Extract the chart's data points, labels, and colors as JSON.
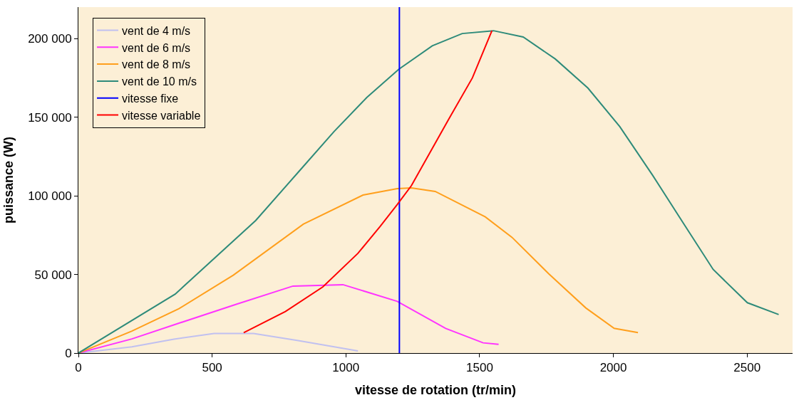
{
  "chart_data": {
    "type": "line",
    "xlabel": "vitesse de rotation (tr/min)",
    "ylabel": "puissance (W)",
    "xlim": [
      0,
      2670
    ],
    "ylim": [
      0,
      220000
    ],
    "xticks": [
      0,
      500,
      1000,
      1500,
      2000,
      2500
    ],
    "yticks": [
      0,
      {
        "value": 50000,
        "label": "50 000"
      },
      {
        "value": 100000,
        "label": "100 000"
      },
      {
        "value": 150000,
        "label": "150 000"
      },
      {
        "value": 200000,
        "label": "200 000"
      }
    ],
    "grid": false,
    "legend": "top left",
    "marker": "none",
    "line_style": "solid",
    "series": [
      {
        "name": "vent de 4 m/s",
        "color": "#c0c0f0",
        "x": [
          0,
          200,
          357,
          507,
          655,
          822,
          1045
        ],
        "values": [
          0,
          4000,
          8800,
          12500,
          12500,
          7900,
          1400
        ]
      },
      {
        "name": "vent de 6 m/s",
        "color": "#ff33ff",
        "x": [
          0,
          200,
          376,
          590,
          802,
          989,
          1192,
          1373,
          1513,
          1571
        ],
        "values": [
          0,
          9000,
          19000,
          31000,
          42600,
          43500,
          32900,
          15700,
          6500,
          5600
        ]
      },
      {
        "name": "vent de 8 m/s",
        "color": "#ff9f1c",
        "x": [
          0,
          200,
          376,
          579,
          841,
          1064,
          1192,
          1245,
          1334,
          1521,
          1621,
          1758,
          1897,
          2003,
          2092
        ],
        "values": [
          0,
          14000,
          28200,
          49500,
          82000,
          100500,
          104600,
          105000,
          102800,
          86600,
          73600,
          50500,
          28700,
          15700,
          13000
        ]
      },
      {
        "name": "vent de 10 m/s",
        "color": "#2e8b7a",
        "x": [
          0,
          362,
          663,
          827,
          955,
          1078,
          1198,
          1323,
          1435,
          1552,
          1663,
          1783,
          1905,
          2024,
          2147,
          2259,
          2373,
          2501,
          2618
        ],
        "values": [
          0,
          37500,
          84300,
          116000,
          140700,
          162500,
          180500,
          195400,
          203200,
          205000,
          201000,
          187000,
          168500,
          144000,
          113000,
          83300,
          53200,
          32000,
          24500
        ]
      },
      {
        "name": "vitesse fixe",
        "color": "#0000ff",
        "x": [
          1200,
          1200
        ],
        "values": [
          0,
          220000
        ]
      },
      {
        "name": "vitesse variable",
        "color": "#ff0000",
        "x": [
          618,
          774,
          914,
          1045,
          1128,
          1192,
          1245,
          1384,
          1473,
          1546
        ],
        "values": [
          13000,
          26400,
          42100,
          63400,
          80500,
          94400,
          106500,
          148600,
          175000,
          205000
        ]
      }
    ]
  }
}
